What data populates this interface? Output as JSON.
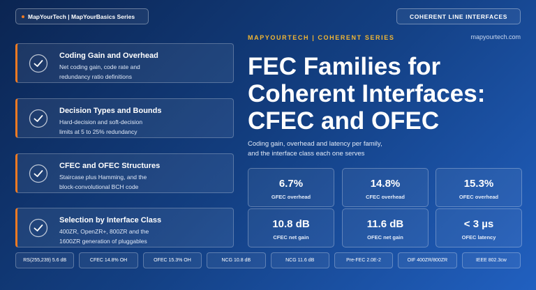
{
  "header": {
    "series_badge": "MapYourTech | MapYourBasics Series",
    "section_badge": "COHERENT LINE INTERFACES",
    "kicker": "MAPYOURTECH | COHERENT SERIES",
    "website": "mapyourtech.com"
  },
  "title_lines": [
    "FEC Families for",
    "Coherent Interfaces:",
    "CFEC and OFEC"
  ],
  "subtitle_lines": [
    "Coding gain, overhead and latency per family,",
    "and the interface class each one serves"
  ],
  "topics": [
    {
      "title": "Coding Gain and Overhead",
      "desc": [
        "Net coding gain, code rate and",
        "redundancy ratio definitions"
      ]
    },
    {
      "title": "Decision Types and Bounds",
      "desc": [
        "Hard-decision and soft-decision",
        "limits at 5 to 25% redundancy"
      ]
    },
    {
      "title": "CFEC and OFEC Structures",
      "desc": [
        "Staircase plus Hamming, and the",
        "block-convolutional BCH code"
      ]
    },
    {
      "title": "Selection by Interface Class",
      "desc": [
        "400ZR, OpenZR+, 800ZR and the",
        "1600ZR generation of pluggables"
      ]
    }
  ],
  "stats": [
    {
      "value": "6.7%",
      "label": "GFEC overhead"
    },
    {
      "value": "14.8%",
      "label": "CFEC overhead"
    },
    {
      "value": "15.3%",
      "label": "OFEC overhead"
    },
    {
      "value": "10.8 dB",
      "label": "CFEC net gain"
    },
    {
      "value": "11.6 dB",
      "label": "OFEC net gain"
    },
    {
      "value": "< 3 µs",
      "label": "OFEC latency"
    }
  ],
  "chips": [
    "RS(255,239) 5.6 dB",
    "CFEC 14.8% OH",
    "OFEC 15.3% OH",
    "NCG 10.8 dB",
    "NCG 11.6 dB",
    "Pre-FEC 2.0E-2",
    "OIF 400ZR/800ZR",
    "IEEE 802.3cw"
  ]
}
